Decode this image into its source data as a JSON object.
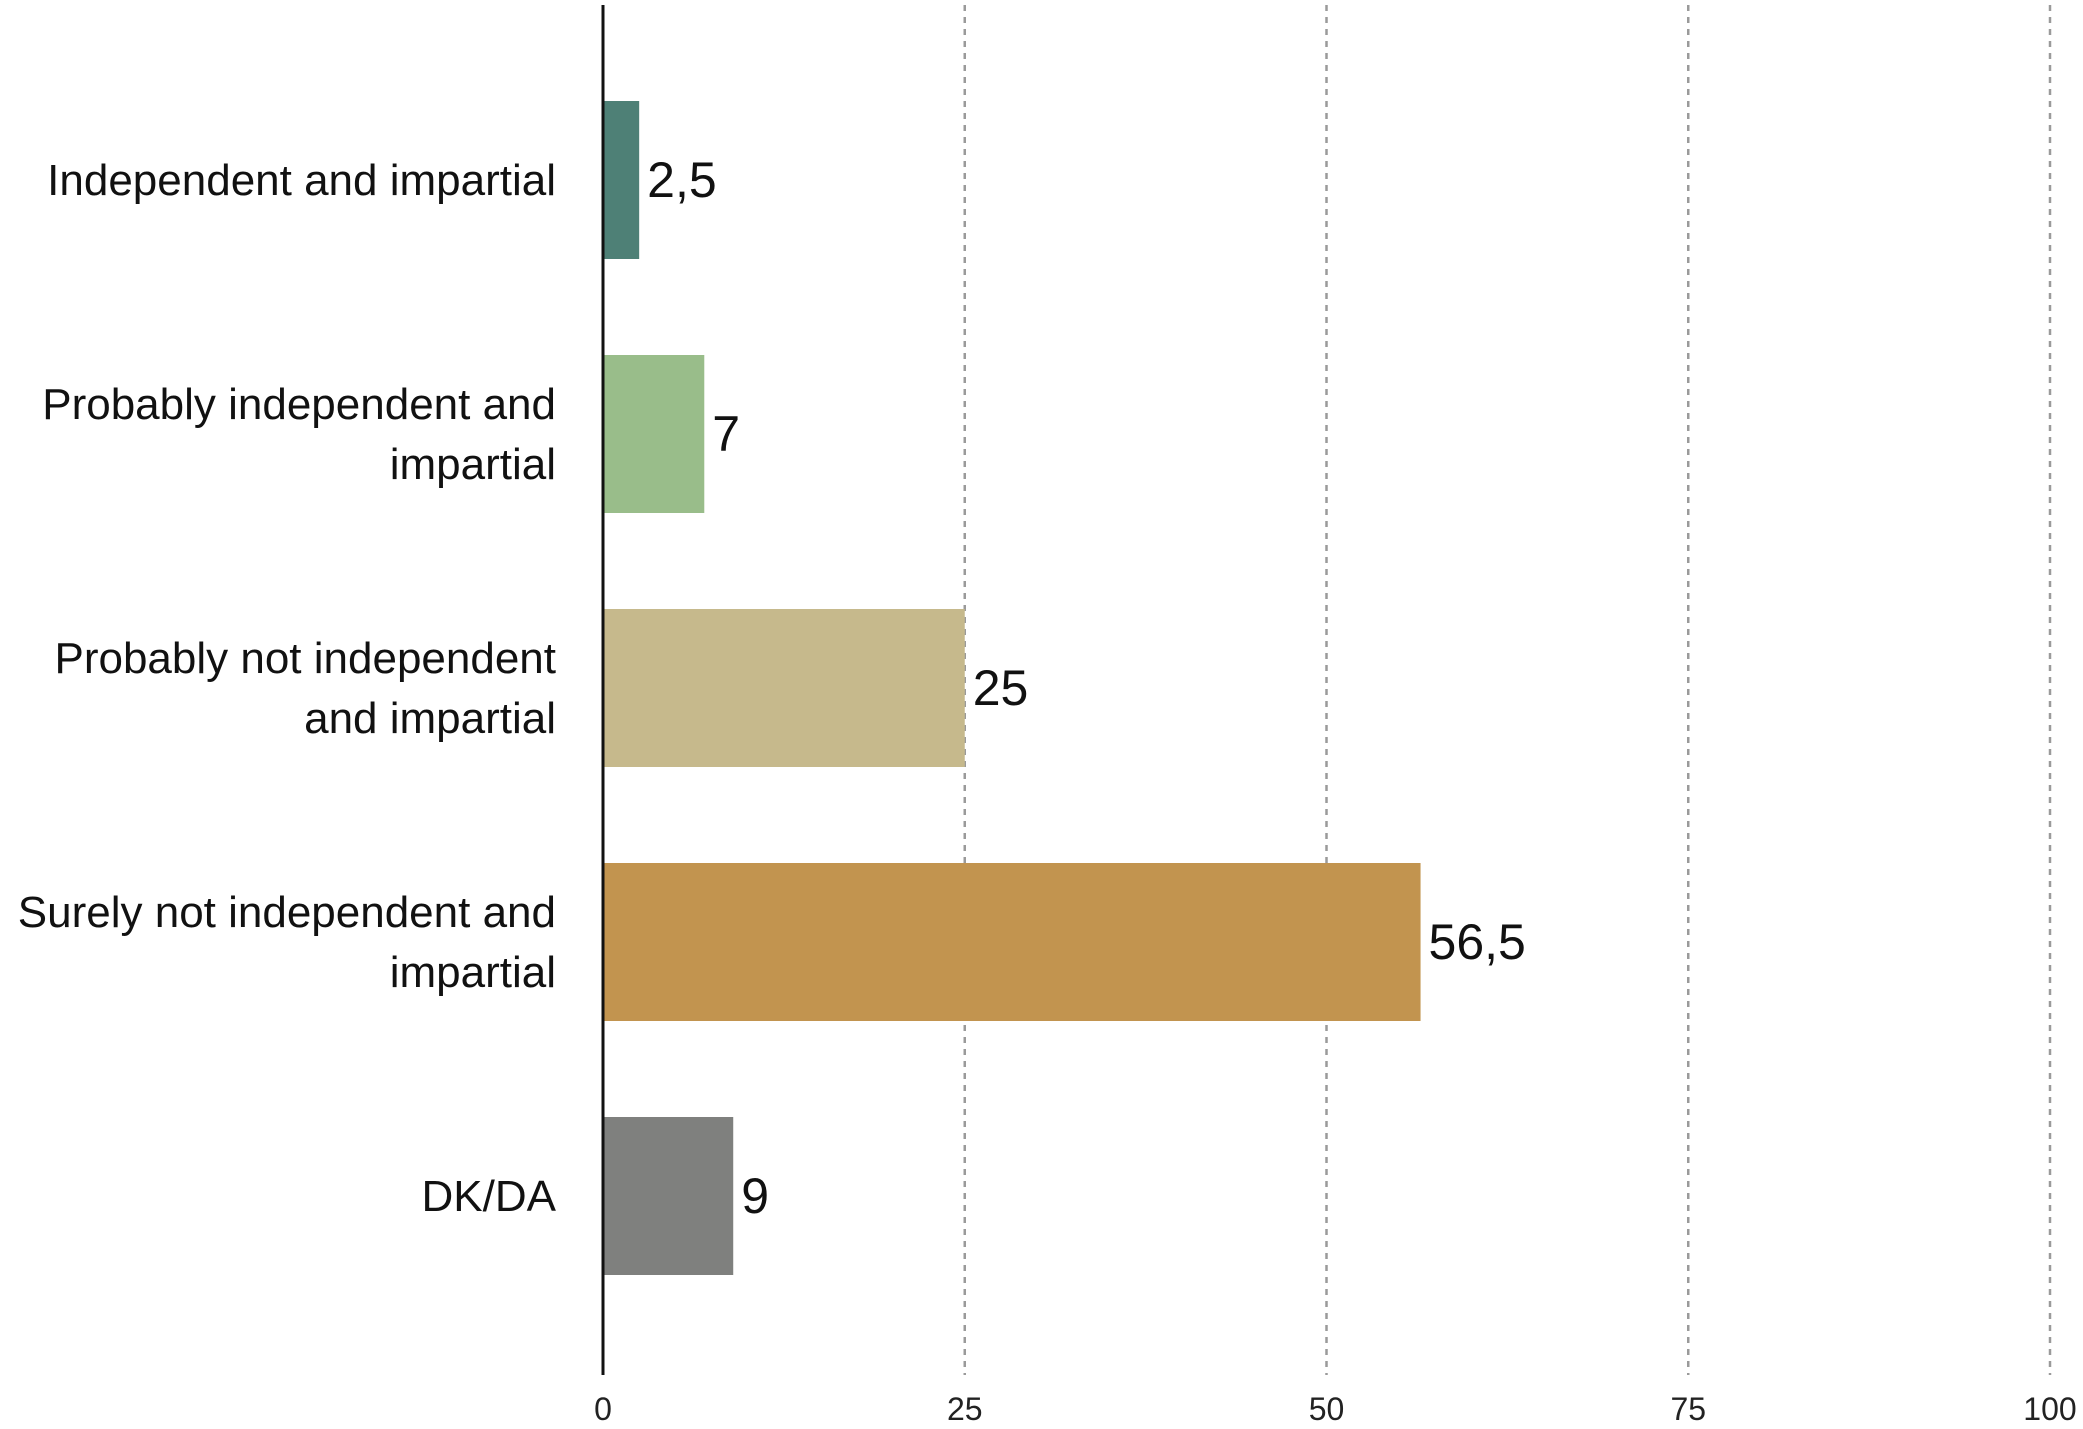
{
  "chart_data": {
    "type": "bar",
    "orientation": "horizontal",
    "categories": [
      [
        "Independent and impartial"
      ],
      [
        "Probably independent and",
        "impartial"
      ],
      [
        "Probably not independent",
        "and impartial"
      ],
      [
        "Surely not independent and",
        "impartial"
      ],
      [
        "DK/DA"
      ]
    ],
    "values": [
      2.5,
      7,
      25,
      56.5,
      9
    ],
    "value_labels": [
      "2,5",
      "7",
      "25",
      "56,5",
      "9"
    ],
    "colors": [
      "#4e8076",
      "#99bd8a",
      "#c6b98c",
      "#c2944f",
      "#7f807e"
    ],
    "xlim": [
      0,
      100
    ],
    "xticks": [
      0,
      25,
      50,
      75,
      100
    ],
    "xtick_labels": [
      "0",
      "25",
      "50",
      "75",
      "100"
    ],
    "grid": "vertical-dashed",
    "title": "",
    "xlabel": "",
    "ylabel": ""
  }
}
